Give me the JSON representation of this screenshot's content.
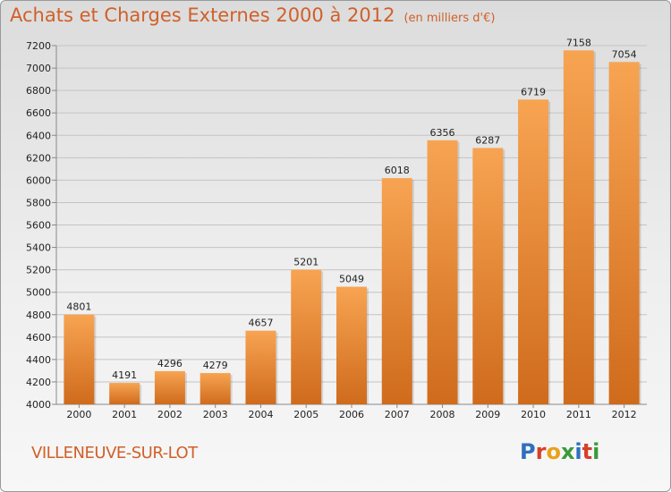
{
  "header": {
    "title": "Achats et Charges Externes 2000 à 2012",
    "unit": "(en milliers d'€)"
  },
  "footer": {
    "commune": "VILLENEUVE-SUR-LOT",
    "brand": "Proxiti"
  },
  "colors": {
    "accent": "#d0602a",
    "bar_top": "#f7a452",
    "bar_bottom": "#cf6b1c",
    "logo_letters": [
      "#2e6fc0",
      "#d6402a",
      "#e8a21a",
      "#3a9a3a",
      "#2e6fc0",
      "#d6402a",
      "#3a9a3a"
    ]
  },
  "chart_data": {
    "type": "bar",
    "title": "Achats et Charges Externes 2000 à 2012",
    "categories": [
      "2000",
      "2001",
      "2002",
      "2003",
      "2004",
      "2005",
      "2006",
      "2007",
      "2008",
      "2009",
      "2010",
      "2011",
      "2012"
    ],
    "values": [
      4801,
      4191,
      4296,
      4279,
      4657,
      5201,
      5049,
      6018,
      6356,
      6287,
      6719,
      7158,
      7054
    ],
    "ylim": [
      4000,
      7200
    ],
    "yticks": [
      4000,
      4200,
      4400,
      4600,
      4800,
      5000,
      5200,
      5400,
      5600,
      5800,
      6000,
      6200,
      6400,
      6600,
      6800,
      7000,
      7200
    ],
    "grid": true,
    "legend": "none"
  }
}
